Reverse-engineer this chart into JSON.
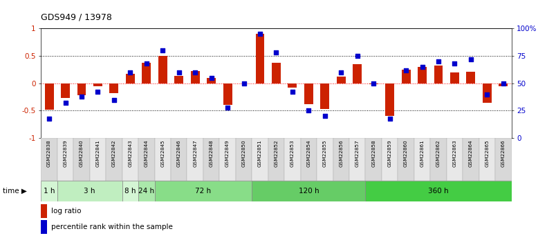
{
  "title": "GDS949 / 13978",
  "samples": [
    "GSM22838",
    "GSM22839",
    "GSM22840",
    "GSM22841",
    "GSM22842",
    "GSM22843",
    "GSM22844",
    "GSM22845",
    "GSM22846",
    "GSM22847",
    "GSM22848",
    "GSM22849",
    "GSM22850",
    "GSM22851",
    "GSM22852",
    "GSM22853",
    "GSM22854",
    "GSM22855",
    "GSM22856",
    "GSM22857",
    "GSM22858",
    "GSM22859",
    "GSM22860",
    "GSM22861",
    "GSM22862",
    "GSM22863",
    "GSM22864",
    "GSM22865",
    "GSM22866"
  ],
  "log_ratio": [
    -0.48,
    -0.27,
    -0.22,
    -0.05,
    -0.18,
    0.17,
    0.38,
    0.5,
    0.13,
    0.22,
    0.1,
    -0.4,
    0.0,
    0.9,
    0.37,
    -0.08,
    -0.38,
    -0.47,
    0.12,
    0.35,
    -0.01,
    -0.6,
    0.25,
    0.3,
    0.33,
    0.2,
    0.21,
    -0.35,
    -0.05
  ],
  "percentile": [
    18,
    32,
    38,
    42,
    35,
    60,
    68,
    80,
    60,
    60,
    55,
    28,
    50,
    95,
    78,
    42,
    25,
    20,
    60,
    75,
    50,
    18,
    62,
    65,
    70,
    68,
    72,
    40,
    50
  ],
  "time_groups": [
    {
      "label": "1 h",
      "start": 0,
      "end": 1,
      "color": "#d4f5d4"
    },
    {
      "label": "3 h",
      "start": 1,
      "end": 5,
      "color": "#c0eec0"
    },
    {
      "label": "8 h",
      "start": 5,
      "end": 6,
      "color": "#d4f5d4"
    },
    {
      "label": "24 h",
      "start": 6,
      "end": 7,
      "color": "#aae8aa"
    },
    {
      "label": "72 h",
      "start": 7,
      "end": 13,
      "color": "#88dd88"
    },
    {
      "label": "120 h",
      "start": 13,
      "end": 20,
      "color": "#66cc66"
    },
    {
      "label": "360 h",
      "start": 20,
      "end": 29,
      "color": "#44cc44"
    }
  ],
  "bar_color": "#cc2200",
  "dot_color": "#0000cc",
  "ylim": [
    -1,
    1
  ],
  "y2lim": [
    0,
    100
  ],
  "yticks_left": [
    -1,
    -0.5,
    0,
    0.5,
    1
  ],
  "ytick_labels_left": [
    "-1",
    "-0.5",
    "0",
    "0.5",
    "1"
  ],
  "yticks_right": [
    0,
    25,
    50,
    75,
    100
  ],
  "ytick_labels_right": [
    "0",
    "25",
    "50",
    "75",
    "100%"
  ]
}
